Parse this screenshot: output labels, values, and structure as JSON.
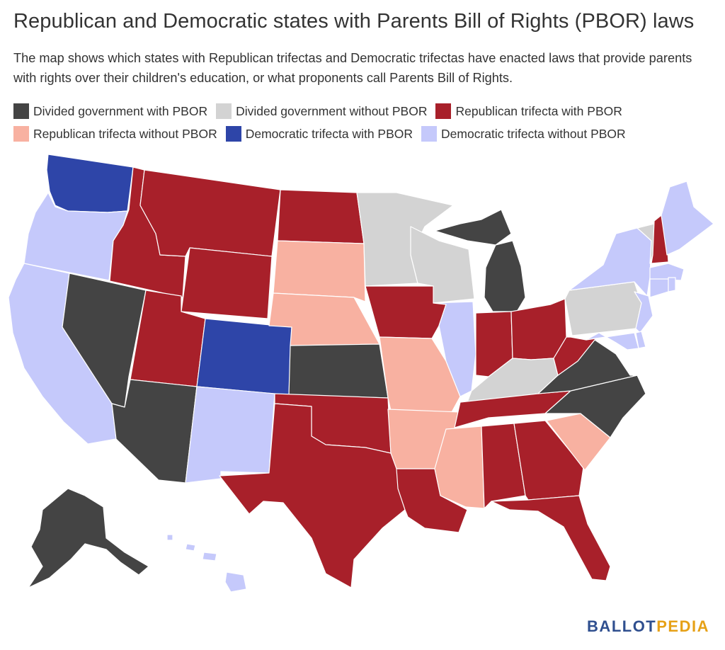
{
  "title": "Republican and Democratic states with Parents Bill of Rights (PBOR) laws",
  "subtitle": "The map shows which states with Republican trifectas and Democratic trifectas have enacted laws that provide parents with rights over their children's education, or what proponents call Parents Bill of Rights.",
  "legend": [
    {
      "key": "div_pbor",
      "label": "Divided government with PBOR",
      "color": "#444444"
    },
    {
      "key": "div_no",
      "label": "Divided government without PBOR",
      "color": "#d3d3d3"
    },
    {
      "key": "rep_pbor",
      "label": "Republican trifecta with PBOR",
      "color": "#a8202a"
    },
    {
      "key": "rep_no",
      "label": "Republican trifecta without PBOR",
      "color": "#f8b1a1"
    },
    {
      "key": "dem_pbor",
      "label": "Democratic trifecta with PBOR",
      "color": "#2e45a8"
    },
    {
      "key": "dem_no",
      "label": "Democratic trifecta without PBOR",
      "color": "#c5c9fb"
    }
  ],
  "states": {
    "WA": "dem_pbor",
    "OR": "dem_no",
    "CA": "dem_no",
    "NV": "div_pbor",
    "ID": "rep_pbor",
    "MT": "rep_pbor",
    "WY": "rep_pbor",
    "UT": "rep_pbor",
    "AZ": "div_pbor",
    "CO": "dem_pbor",
    "NM": "dem_no",
    "ND": "rep_pbor",
    "SD": "rep_no",
    "NE": "rep_no",
    "KS": "div_pbor",
    "OK": "rep_pbor",
    "TX": "rep_pbor",
    "MN": "div_no",
    "IA": "rep_pbor",
    "MO": "rep_no",
    "AR": "rep_no",
    "LA": "rep_pbor",
    "WI": "div_no",
    "IL": "dem_no",
    "MI": "div_pbor",
    "IN": "rep_pbor",
    "OH": "rep_pbor",
    "KY": "div_no",
    "TN": "rep_pbor",
    "MS": "rep_no",
    "AL": "rep_pbor",
    "GA": "rep_pbor",
    "FL": "rep_pbor",
    "SC": "rep_no",
    "NC": "div_pbor",
    "VA": "div_pbor",
    "WV": "rep_pbor",
    "PA": "div_no",
    "NY": "dem_no",
    "VT": "div_no",
    "NH": "rep_pbor",
    "ME": "dem_no",
    "MA": "dem_no",
    "CT": "dem_no",
    "RI": "dem_no",
    "NJ": "dem_no",
    "DE": "dem_no",
    "MD": "dem_no",
    "AK": "div_pbor",
    "HI": "dem_no"
  },
  "logo": {
    "part1": "BALLOT",
    "part2": "PEDIA"
  }
}
